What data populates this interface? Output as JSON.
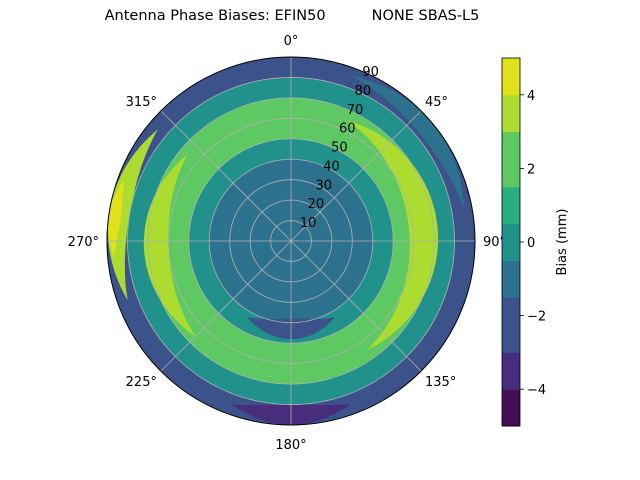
{
  "chart_data": {
    "type": "polar-contour",
    "title": "Antenna Phase Biases: EFIN50          NONE SBAS-L5",
    "theta_ticks": [
      "0°",
      "45°",
      "90°",
      "135°",
      "180°",
      "225°",
      "270°",
      "315°"
    ],
    "theta_tick_angles": [
      0,
      45,
      90,
      135,
      180,
      225,
      270,
      315
    ],
    "r_ticks": [
      10,
      20,
      30,
      40,
      50,
      60,
      70,
      80,
      90
    ],
    "rlim": [
      0,
      90
    ],
    "colorbar": {
      "label": "Bias (mm)",
      "ticks": [
        -4,
        -2,
        0,
        2,
        4
      ],
      "range": [
        -5,
        5
      ],
      "levels": [
        -5,
        -4.5,
        -4,
        -3.5,
        -3,
        -2.5,
        -2,
        -1.5,
        -1,
        -0.5,
        0,
        0.5,
        1,
        1.5,
        2,
        2.5,
        3,
        3.5,
        4,
        4.5,
        5
      ],
      "colors": [
        "#450d54",
        "#472d7b",
        "#3b528b",
        "#2c728e",
        "#21918c",
        "#28ae80",
        "#5ec962",
        "#addc30",
        "#e0e11a"
      ]
    },
    "bands": [
      {
        "r_range": [
          0,
          10
        ],
        "bias": -0.8
      },
      {
        "r_range": [
          10,
          20
        ],
        "bias": -1.0
      },
      {
        "r_range": [
          20,
          30
        ],
        "bias": -1.6
      },
      {
        "r_range": [
          30,
          40
        ],
        "bias": -1.2
      },
      {
        "r_range": [
          40,
          50
        ],
        "bias": 0.4
      },
      {
        "r_range": [
          50,
          60
        ],
        "bias": 1.8
      },
      {
        "r_range": [
          60,
          70
        ],
        "bias": 2.2
      },
      {
        "r_range": [
          70,
          80
        ],
        "bias": -0.3
      },
      {
        "r_range": [
          80,
          90
        ],
        "bias": -2.2
      }
    ],
    "grid": true
  }
}
